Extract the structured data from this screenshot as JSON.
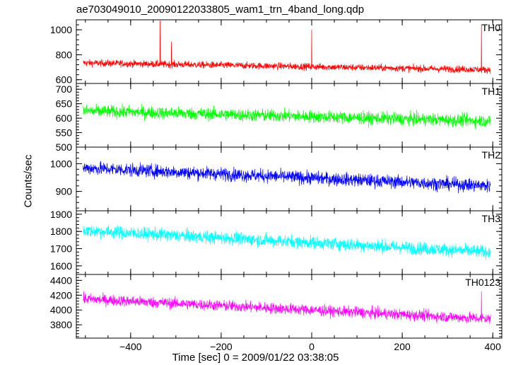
{
  "chart_data": {
    "type": "line",
    "title": "ae703049010_20090122033805_wam1_trn_4band_long.qdp",
    "xlabel": "Time [sec] 0 = 2009/01/22 03:38:05",
    "ylabel": "Counts/sec",
    "xlim": [
      -520,
      420
    ],
    "xticks": [
      -400,
      -200,
      0,
      200,
      400
    ],
    "x_start": -505,
    "x_end": 395,
    "panels": [
      {
        "name": "TH0",
        "color": "#ff0000",
        "ylim": [
          570,
          1080
        ],
        "yticks": [
          600,
          800,
          1000
        ],
        "mean_start": 735,
        "mean_end": 680,
        "noise": 28,
        "spikes": [
          [
            -335,
            1075
          ],
          [
            -310,
            905
          ],
          [
            0,
            1000
          ],
          [
            375,
            1045
          ]
        ]
      },
      {
        "name": "TH1",
        "color": "#00ff00",
        "ylim": [
          500,
          720
        ],
        "yticks": [
          500,
          550,
          600,
          650,
          700
        ],
        "mean_start": 625,
        "mean_end": 590,
        "noise": 22,
        "spikes": []
      },
      {
        "name": "TH2",
        "color": "#0000ff",
        "ylim": [
          830,
          1060
        ],
        "yticks": [
          900,
          1000
        ],
        "mean_start": 985,
        "mean_end": 920,
        "noise": 24,
        "spikes": []
      },
      {
        "name": "TH3",
        "color": "#00ffff",
        "ylim": [
          1550,
          1920
        ],
        "yticks": [
          1600,
          1700,
          1800,
          1900
        ],
        "mean_start": 1805,
        "mean_end": 1680,
        "noise": 38,
        "spikes": []
      },
      {
        "name": "TH0123",
        "color": "#ff00ff",
        "ylim": [
          3620,
          4480
        ],
        "yticks": [
          3800,
          4000,
          4200,
          4400
        ],
        "mean_start": 4150,
        "mean_end": 3880,
        "noise": 75,
        "spikes": [
          [
            375,
            4250
          ]
        ]
      }
    ]
  }
}
